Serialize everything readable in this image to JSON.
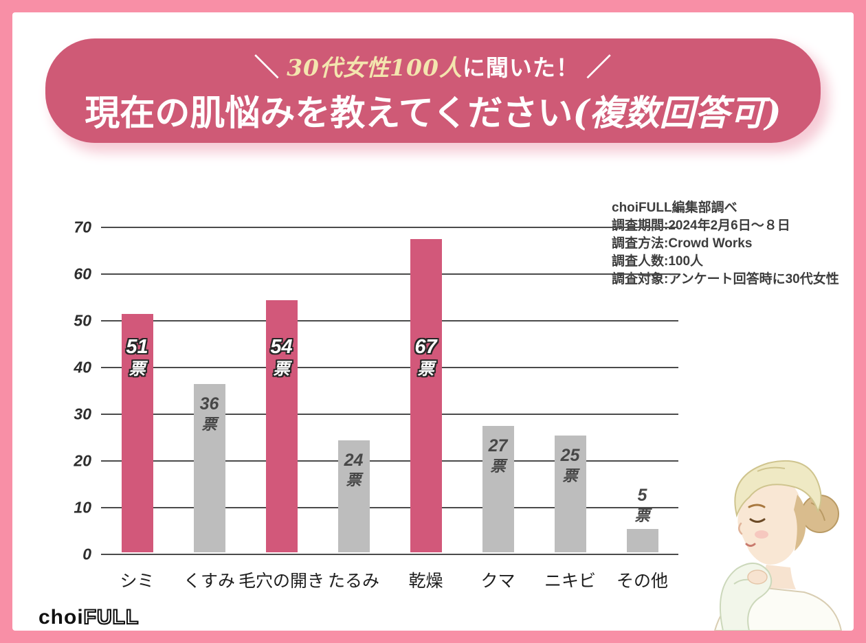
{
  "title": {
    "line1": {
      "open": "＼",
      "highlight": "30代女性100人",
      "rest": "に聞いた！",
      "close": "／"
    },
    "line2": {
      "main": "現在の肌悩みを教えてください",
      "note": "(複数回答可)"
    }
  },
  "survey_info": {
    "lines": [
      "choiFULL編集部調べ",
      "調査期間:2024年2月6日〜８日",
      "調査方法:Crowd Works",
      "調査人数:100人",
      "調査対象:アンケート回答時に30代女性"
    ]
  },
  "chart_data": {
    "type": "bar",
    "title": "現在の肌悩みを教えてください(複数回答可)",
    "categories": [
      "シミ",
      "くすみ",
      "毛穴の開き",
      "たるみ",
      "乾燥",
      "クマ",
      "ニキビ",
      "その他"
    ],
    "values": [
      51,
      36,
      54,
      24,
      67,
      27,
      25,
      5
    ],
    "unit_label": "票",
    "highlighted_indices": [
      0,
      2,
      4
    ],
    "ylabel": "",
    "xlabel": "",
    "ylim": [
      0,
      70
    ],
    "yticks": [
      70,
      60,
      50,
      40,
      30,
      20,
      10,
      0
    ],
    "grid": true,
    "legend": "none",
    "colors": {
      "highlight_bar": "#d2587a",
      "normal_bar": "#bdbdbd",
      "grid_line": "#4a4a4a",
      "highlight_label_text": "#ffffff",
      "normal_label_text": "#474747"
    }
  },
  "colors": {
    "frame_border": "#f88fa6",
    "banner_background": "#cf5a76",
    "banner_text": "#ffffff",
    "banner_highlight_text": "#f3e5ae"
  },
  "logo": {
    "text_solid": "choi",
    "text_outline": "FULL"
  },
  "illustration": "woman-wiping-face-with-towel"
}
